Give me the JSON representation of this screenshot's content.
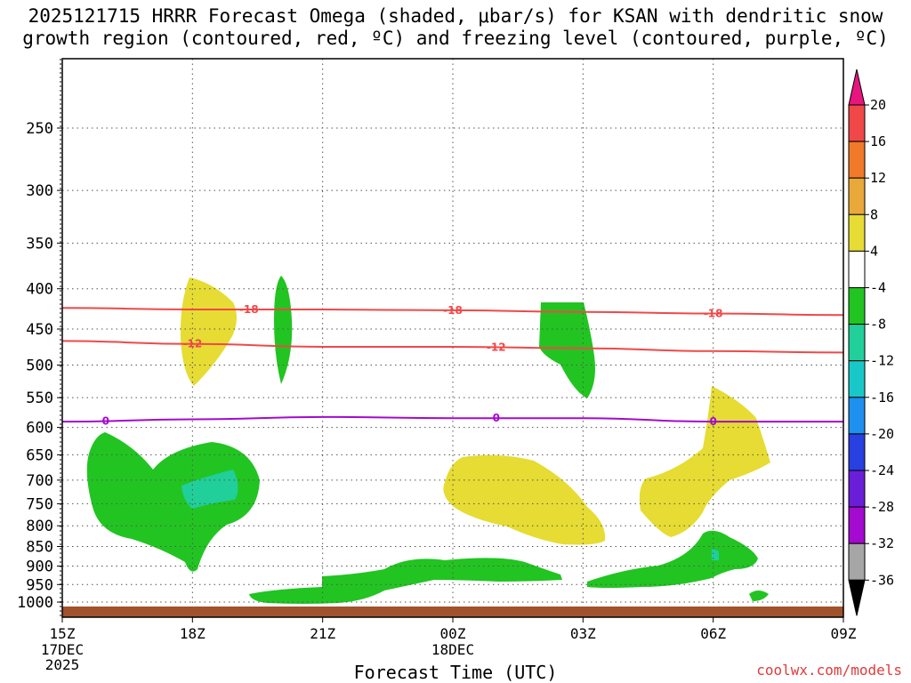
{
  "title_line1": "2025121715 HRRR Forecast Omega (shaded, μbar/s) for KSAN with dendritic snow",
  "title_line2": "growth region (contoured, red, ºC) and freezing level (contoured, purple, ºC)",
  "credit": "coolwx.com/models",
  "chart_data": {
    "type": "area",
    "xlabel": "Forecast Time (UTC)",
    "ylabel": "",
    "x_ticks": [
      "15Z",
      "18Z",
      "21Z",
      "00Z",
      "03Z",
      "06Z",
      "09Z"
    ],
    "x_date_labels": {
      "15Z": [
        "17DEC",
        "2025"
      ],
      "00Z": [
        "18DEC"
      ]
    },
    "y_ticks": [
      250,
      300,
      350,
      400,
      450,
      500,
      550,
      600,
      650,
      700,
      750,
      800,
      850,
      900,
      950,
      1000
    ],
    "ylim": [
      1030,
      200
    ],
    "grid": true,
    "colorbar": {
      "labels": [
        "20",
        "16",
        "12",
        "8",
        "4",
        "-4",
        "-8",
        "-12",
        "-16",
        "-20",
        "-24",
        "-28",
        "-32",
        "-36"
      ],
      "colors": [
        "#e8157e",
        "#f04848",
        "#f07a2a",
        "#e8a83a",
        "#e6dc33",
        "#ffffff",
        "#22c422",
        "#20cf9a",
        "#18c8c8",
        "#1e90f0",
        "#2840e0",
        "#6a1ed8",
        "#a40ad0",
        "#a6a6a6",
        "#000000"
      ]
    },
    "contours": [
      {
        "level": -18,
        "color": "#f04848",
        "label_times": [
          "18Z",
          "00Z",
          "06Z"
        ],
        "pressure": [
          [
            15,
            423
          ],
          [
            18,
            425
          ],
          [
            21,
            425
          ],
          [
            0,
            426
          ],
          [
            3,
            428
          ],
          [
            6,
            430
          ],
          [
            9,
            432
          ]
        ]
      },
      {
        "level": -12,
        "color": "#f04848",
        "label_times": [
          "18Z",
          "01Z"
        ],
        "pressure": [
          [
            15,
            466
          ],
          [
            18,
            470
          ],
          [
            21,
            474
          ],
          [
            0,
            474
          ],
          [
            3,
            476
          ],
          [
            6,
            480
          ],
          [
            9,
            482
          ]
        ]
      },
      {
        "level": 0,
        "color": "#a40ad0",
        "label_times": [
          "16Z",
          "01Z",
          "06Z"
        ],
        "pressure": [
          [
            15,
            590
          ],
          [
            18,
            586
          ],
          [
            21,
            582
          ],
          [
            0,
            584
          ],
          [
            3,
            584
          ],
          [
            6,
            590
          ],
          [
            9,
            590
          ]
        ]
      }
    ],
    "contour_labels": [
      "-18",
      "-18",
      "-18",
      "-12",
      "-12",
      "0",
      "0",
      "0"
    ],
    "shaded_regions": [
      {
        "sign": "positive",
        "value_range": [
          4,
          8
        ],
        "hours": [
          18,
          19
        ],
        "pressure": [
          385,
          530
        ]
      },
      {
        "sign": "negative",
        "value_range": [
          -8,
          -4
        ],
        "hours": [
          20,
          20
        ],
        "pressure": [
          385,
          530
        ]
      },
      {
        "sign": "negative",
        "value_range": [
          -8,
          -4
        ],
        "hours": [
          2,
          3
        ],
        "pressure": [
          420,
          550
        ]
      },
      {
        "sign": "negative",
        "value_range": [
          -8,
          -4
        ],
        "hours": [
          15,
          19
        ],
        "pressure": [
          610,
          920
        ]
      },
      {
        "sign": "negative",
        "value_range": [
          -12,
          -8
        ],
        "hours": [
          18,
          19
        ],
        "pressure": [
          680,
          740
        ]
      },
      {
        "sign": "positive",
        "value_range": [
          4,
          8
        ],
        "hours": [
          0,
          3
        ],
        "pressure": [
          650,
          840
        ]
      },
      {
        "sign": "positive",
        "value_range": [
          4,
          8
        ],
        "hours": [
          4,
          7
        ],
        "pressure": [
          540,
          830
        ]
      },
      {
        "sign": "negative",
        "value_range": [
          -8,
          -4
        ],
        "hours": [
          20,
          3
        ],
        "pressure": [
          880,
          1000
        ]
      },
      {
        "sign": "negative",
        "value_range": [
          -8,
          -4
        ],
        "hours": [
          3,
          7
        ],
        "pressure": [
          810,
          960
        ]
      },
      {
        "sign": "negative",
        "value_range": [
          -8,
          -4
        ],
        "hours": [
          7,
          7
        ],
        "pressure": [
          960,
          990
        ]
      }
    ]
  }
}
